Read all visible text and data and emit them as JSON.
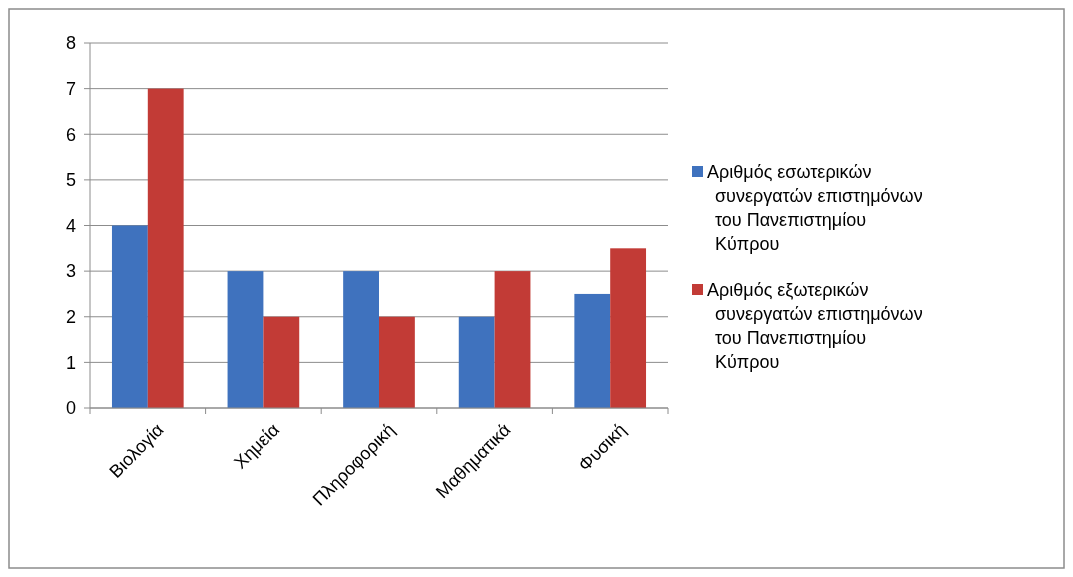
{
  "chart_data": {
    "type": "bar",
    "categories": [
      "Βιολογία",
      "Χημεία",
      "Πληροφορική",
      "Μαθηματικά",
      "Φυσική"
    ],
    "series": [
      {
        "name": "Αριθμός εσωτερικών συνεργατών επιστημόνων του Πανεπιστημίου Κύπρου",
        "color": "#3f72be",
        "values": [
          4,
          3,
          3,
          2,
          2.5
        ]
      },
      {
        "name": "Αριθμός εξωτερικών συνεργατών επιστημόνων του Πανεπιστημίου Κύπρου",
        "color": "#c23b36",
        "values": [
          7,
          2,
          2,
          3,
          3.5
        ]
      }
    ],
    "ylim": [
      0,
      8
    ],
    "yticks": [
      0,
      1,
      2,
      3,
      4,
      5,
      6,
      7,
      8
    ],
    "grid": "y",
    "legend": "right"
  }
}
